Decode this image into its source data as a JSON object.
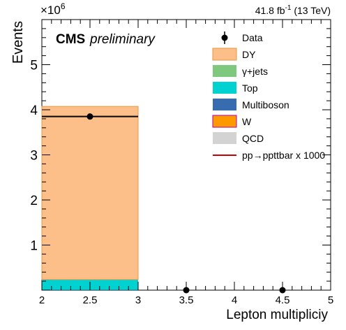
{
  "header": {
    "lumi_label": "41.8 fb",
    "lumi_exp": "-1",
    "energy_label": " (13 TeV)",
    "exponent_base": "×10",
    "exponent_power": "6",
    "cms_label": "CMS",
    "prelim_label": "preliminary"
  },
  "colors": {
    "DY": "#fdbf89",
    "DY_line": "#e8973f",
    "gamma_jets": "#7fc97f",
    "Top": "#00d1d1",
    "Multiboson": "#386cb0",
    "W": "#ff9900",
    "W_line": "#b000b0",
    "QCD": "#d3d3d3",
    "signal": "#cc0000",
    "data": "#000000"
  },
  "chart_data": {
    "type": "bar",
    "stacked": true,
    "xlabel": "Lepton multipliciy",
    "ylabel": "Events",
    "xlim": [
      2,
      5
    ],
    "ylim": [
      0,
      6
    ],
    "y_scale_factor": "1e6",
    "bin_edges": [
      2,
      3,
      4,
      5
    ],
    "x_ticks": [
      "2",
      "2.5",
      "3",
      "3.5",
      "4",
      "4.5",
      "5"
    ],
    "y_ticks": [
      "1",
      "2",
      "3",
      "4",
      "5"
    ],
    "series": [
      {
        "name": "DY",
        "values": [
          3.84,
          0,
          0
        ]
      },
      {
        "name": "γ+jets",
        "values": [
          0,
          0,
          0
        ]
      },
      {
        "name": "Top",
        "values": [
          0.23,
          0,
          0
        ]
      },
      {
        "name": "Multiboson",
        "values": [
          0.005,
          0,
          0
        ]
      },
      {
        "name": "W",
        "values": [
          0,
          0,
          0
        ]
      },
      {
        "name": "QCD",
        "values": [
          0,
          0,
          0
        ]
      },
      {
        "name": "pp→ppttbar x 1000",
        "values": [
          0,
          0,
          0
        ]
      }
    ],
    "data_points": {
      "name": "Data",
      "x": [
        2.5,
        3.5,
        4.5
      ],
      "y": [
        3.85,
        0,
        0
      ]
    },
    "legend_placement": "top-right",
    "grid": false
  }
}
